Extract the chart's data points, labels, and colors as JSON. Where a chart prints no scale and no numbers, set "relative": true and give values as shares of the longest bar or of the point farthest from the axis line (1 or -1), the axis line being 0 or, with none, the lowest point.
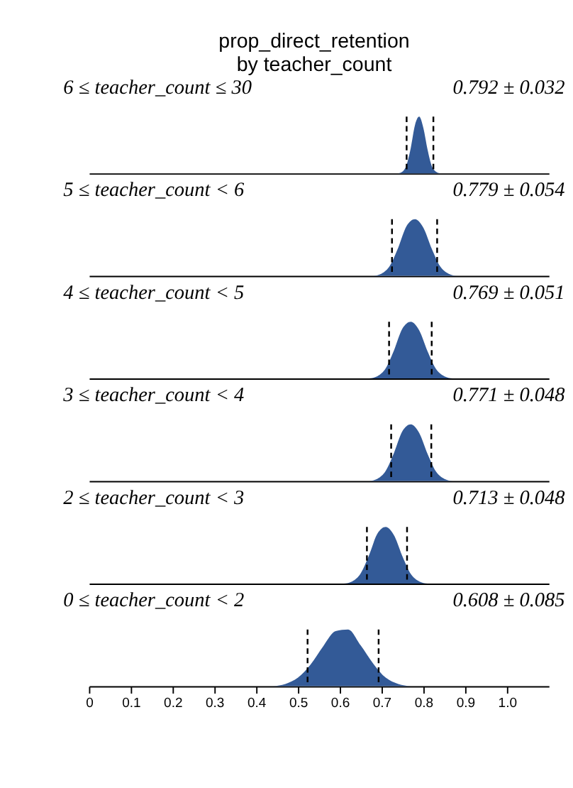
{
  "chart_data": [
    {
      "type": "area",
      "title": "prop_direct_retention\nby teacher_count",
      "annotations": [
        "6 ≤ teacher_count ≤ 30",
        "0.792 ± 0.032"
      ],
      "relative": true,
      "color": "#335a97",
      "xlim": [
        0,
        1.1
      ],
      "tick_labels": false,
      "x": [
        0.74,
        0.75,
        0.76,
        0.77,
        0.78,
        0.79,
        0.8,
        0.81,
        0.82,
        0.83,
        0.84
      ],
      "values": [
        0,
        0.03,
        0.15,
        0.45,
        0.85,
        1,
        0.8,
        0.42,
        0.13,
        0.03,
        0
      ],
      "ref_lines": [
        {
          "axis": "x",
          "value": 0.76,
          "color": "#000000",
          "line_style": "dashed"
        },
        {
          "axis": "x",
          "value": 0.824,
          "color": "#000000",
          "line_style": "dashed"
        }
      ]
    },
    {
      "type": "area",
      "annotations": [
        "5 ≤ teacher_count < 6",
        "0.779 ± 0.054"
      ],
      "relative": true,
      "color": "#335a97",
      "xlim": [
        0,
        1.1
      ],
      "tick_labels": false,
      "x": [
        0.68,
        0.7,
        0.72,
        0.74,
        0.76,
        0.78,
        0.8,
        0.82,
        0.84,
        0.86,
        0.88
      ],
      "values": [
        0,
        0.04,
        0.18,
        0.5,
        0.88,
        1,
        0.85,
        0.48,
        0.17,
        0.04,
        0
      ],
      "ref_lines": [
        {
          "axis": "x",
          "value": 0.725,
          "color": "#000000",
          "line_style": "dashed"
        },
        {
          "axis": "x",
          "value": 0.833,
          "color": "#000000",
          "line_style": "dashed"
        }
      ]
    },
    {
      "type": "area",
      "annotations": [
        "4 ≤ teacher_count < 5",
        "0.769 ± 0.051"
      ],
      "relative": true,
      "color": "#335a97",
      "xlim": [
        0,
        1.1
      ],
      "tick_labels": false,
      "x": [
        0.67,
        0.69,
        0.71,
        0.73,
        0.75,
        0.77,
        0.79,
        0.81,
        0.83,
        0.85,
        0.87
      ],
      "values": [
        0,
        0.04,
        0.18,
        0.5,
        0.88,
        1,
        0.85,
        0.48,
        0.17,
        0.04,
        0
      ],
      "ref_lines": [
        {
          "axis": "x",
          "value": 0.718,
          "color": "#000000",
          "line_style": "dashed"
        },
        {
          "axis": "x",
          "value": 0.82,
          "color": "#000000",
          "line_style": "dashed"
        }
      ]
    },
    {
      "type": "area",
      "annotations": [
        "3 ≤ teacher_count < 4",
        "0.771 ± 0.048"
      ],
      "relative": true,
      "color": "#335a97",
      "xlim": [
        0,
        1.1
      ],
      "tick_labels": false,
      "x": [
        0.67,
        0.69,
        0.71,
        0.73,
        0.75,
        0.77,
        0.79,
        0.81,
        0.83,
        0.85,
        0.87
      ],
      "values": [
        0,
        0.04,
        0.18,
        0.5,
        0.88,
        1,
        0.85,
        0.48,
        0.17,
        0.04,
        0
      ],
      "ref_lines": [
        {
          "axis": "x",
          "value": 0.723,
          "color": "#000000",
          "line_style": "dashed"
        },
        {
          "axis": "x",
          "value": 0.819,
          "color": "#000000",
          "line_style": "dashed"
        }
      ]
    },
    {
      "type": "area",
      "annotations": [
        "2 ≤ teacher_count < 3",
        "0.713 ± 0.048"
      ],
      "relative": true,
      "color": "#335a97",
      "xlim": [
        0,
        1.1
      ],
      "tick_labels": false,
      "x": [
        0.61,
        0.63,
        0.65,
        0.67,
        0.69,
        0.71,
        0.73,
        0.75,
        0.77,
        0.79,
        0.81
      ],
      "values": [
        0,
        0.04,
        0.18,
        0.5,
        0.88,
        1,
        0.85,
        0.48,
        0.17,
        0.04,
        0
      ],
      "ref_lines": [
        {
          "axis": "x",
          "value": 0.665,
          "color": "#000000",
          "line_style": "dashed"
        },
        {
          "axis": "x",
          "value": 0.761,
          "color": "#000000",
          "line_style": "dashed"
        }
      ]
    },
    {
      "type": "area",
      "annotations": [
        "0 ≤ teacher_count < 2",
        "0.608 ± 0.085"
      ],
      "relative": true,
      "color": "#335a97",
      "xlim": [
        0,
        1.1
      ],
      "tick_labels": "x",
      "xticks": [
        0,
        0.1,
        0.2,
        0.3,
        0.4,
        0.5,
        0.6,
        0.7,
        0.8,
        0.9,
        {
          "value": 1,
          "label": "1.0"
        }
      ],
      "x": [
        0.44,
        0.47,
        0.5,
        0.53,
        0.56,
        0.59,
        0.62,
        0.65,
        0.68,
        0.71,
        0.74,
        0.77
      ],
      "values": [
        0,
        0.04,
        0.15,
        0.38,
        0.7,
        0.97,
        1,
        0.72,
        0.4,
        0.15,
        0.04,
        0
      ],
      "ref_lines": [
        {
          "axis": "x",
          "value": 0.523,
          "color": "#000000",
          "line_style": "dashed"
        },
        {
          "axis": "x",
          "value": 0.693,
          "color": "#000000",
          "line_style": "dashed"
        }
      ]
    }
  ]
}
